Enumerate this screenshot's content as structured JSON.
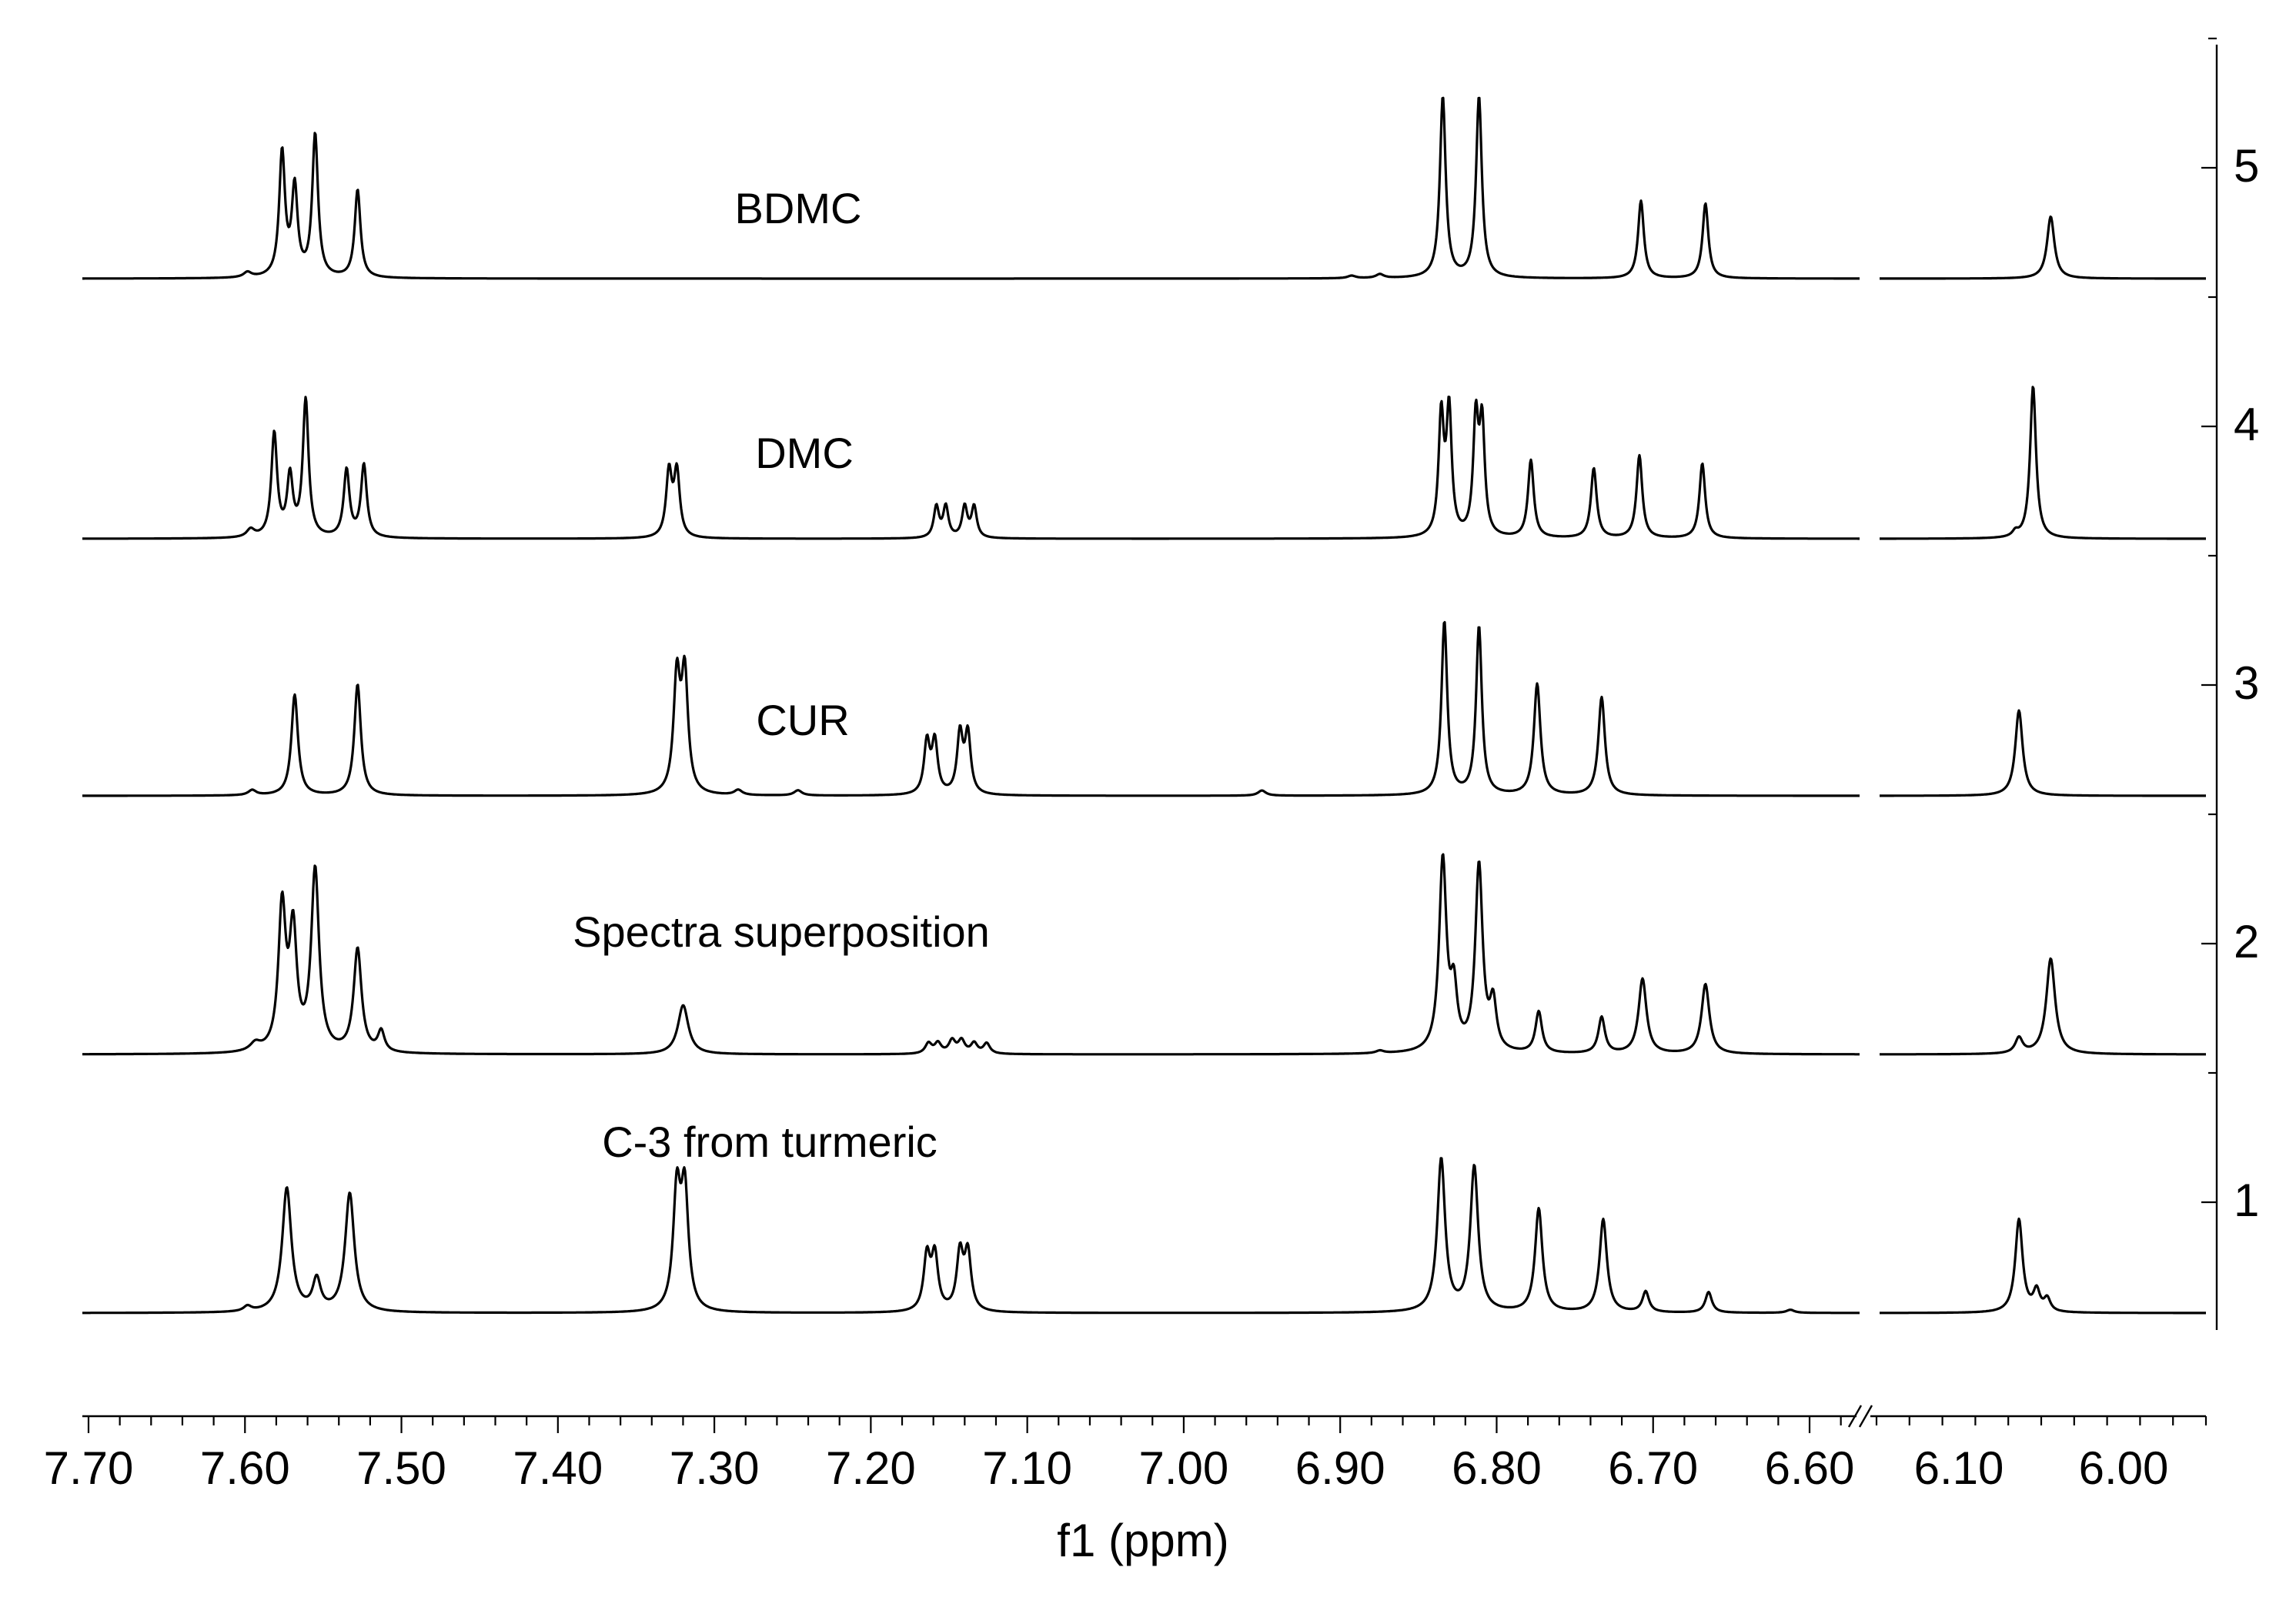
{
  "chart_data": {
    "type": "line",
    "xlabel": "f1 (ppm)",
    "x_axis": {
      "reversed": true,
      "broken": true,
      "segments": [
        {
          "from": 7.7,
          "to": 6.57,
          "major_ticks": [
            7.7,
            7.6,
            7.5,
            7.4,
            7.3,
            7.2,
            7.1,
            7.0,
            6.9,
            6.8,
            6.7,
            6.6
          ]
        },
        {
          "from": 6.15,
          "to": 5.95,
          "major_ticks": [
            6.1,
            6.0
          ]
        }
      ],
      "tick_labels": [
        "7.70",
        "7.60",
        "7.50",
        "7.40",
        "7.30",
        "7.20",
        "7.10",
        "7.00",
        "6.90",
        "6.80",
        "6.70",
        "6.60",
        "6.10",
        "6.00"
      ]
    },
    "y_axis": {
      "position": "right",
      "ticks": [
        1,
        2,
        3,
        4,
        5
      ],
      "tick_labels": [
        "1",
        "2",
        "3",
        "4",
        "5"
      ]
    },
    "grid": false,
    "legend": "none",
    "series": [
      {
        "name": "C-3 from turmeric",
        "offset": 1,
        "peaks": [
          {
            "ppm": 7.595,
            "h": 0.02,
            "w": 0.003
          },
          {
            "ppm": 7.57,
            "h": 0.48,
            "w": 0.0035
          },
          {
            "ppm": 7.551,
            "h": 0.12,
            "w": 0.003
          },
          {
            "ppm": 7.53,
            "h": 0.46,
            "w": 0.0035
          },
          {
            "ppm": 7.322,
            "h": 0.45,
            "w": 0.0028
          },
          {
            "ppm": 7.317,
            "h": 0.45,
            "w": 0.0028
          },
          {
            "ppm": 7.163,
            "h": 0.21,
            "w": 0.0025
          },
          {
            "ppm": 7.158,
            "h": 0.21,
            "w": 0.0025
          },
          {
            "ppm": 7.142,
            "h": 0.22,
            "w": 0.0025
          },
          {
            "ppm": 7.137,
            "h": 0.22,
            "w": 0.0025
          },
          {
            "ppm": 6.836,
            "h": 0.59,
            "w": 0.003
          },
          {
            "ppm": 6.815,
            "h": 0.56,
            "w": 0.003
          },
          {
            "ppm": 6.774,
            "h": 0.4,
            "w": 0.0028
          },
          {
            "ppm": 6.733,
            "h": 0.36,
            "w": 0.0028
          },
          {
            "ppm": 6.706,
            "h": 0.08,
            "w": 0.0025
          },
          {
            "ppm": 6.666,
            "h": 0.08,
            "w": 0.0025
          },
          {
            "ppm": 6.614,
            "h": 0.012,
            "w": 0.003
          },
          {
            "ppm": 6.056,
            "h": 0.36,
            "w": 0.0025
          },
          {
            "ppm": 6.046,
            "h": 0.08,
            "w": 0.0022
          },
          {
            "ppm": 6.04,
            "h": 0.05,
            "w": 0.0022
          }
        ]
      },
      {
        "name": "Spectra superposition",
        "offset": 2,
        "peaks": [
          {
            "ppm": 7.59,
            "h": 0.03,
            "w": 0.004
          },
          {
            "ppm": 7.573,
            "h": 0.55,
            "w": 0.0028
          },
          {
            "ppm": 7.566,
            "h": 0.45,
            "w": 0.0028
          },
          {
            "ppm": 7.552,
            "h": 0.7,
            "w": 0.003
          },
          {
            "ppm": 7.525,
            "h": 0.4,
            "w": 0.003
          },
          {
            "ppm": 7.51,
            "h": 0.08,
            "w": 0.0025
          },
          {
            "ppm": 7.318,
            "h": 0.19,
            "w": 0.004
          },
          {
            "ppm": 7.162,
            "h": 0.04,
            "w": 0.0025
          },
          {
            "ppm": 7.156,
            "h": 0.04,
            "w": 0.0025
          },
          {
            "ppm": 7.147,
            "h": 0.05,
            "w": 0.0025
          },
          {
            "ppm": 7.141,
            "h": 0.05,
            "w": 0.0025
          },
          {
            "ppm": 7.133,
            "h": 0.04,
            "w": 0.0025
          },
          {
            "ppm": 7.125,
            "h": 0.04,
            "w": 0.0025
          },
          {
            "ppm": 6.875,
            "h": 0.01,
            "w": 0.003
          },
          {
            "ppm": 6.835,
            "h": 0.74,
            "w": 0.0028
          },
          {
            "ppm": 6.828,
            "h": 0.22,
            "w": 0.0025
          },
          {
            "ppm": 6.812,
            "h": 0.72,
            "w": 0.0028
          },
          {
            "ppm": 6.803,
            "h": 0.18,
            "w": 0.0025
          },
          {
            "ppm": 6.774,
            "h": 0.16,
            "w": 0.0025
          },
          {
            "ppm": 6.734,
            "h": 0.14,
            "w": 0.0025
          },
          {
            "ppm": 6.708,
            "h": 0.29,
            "w": 0.003
          },
          {
            "ppm": 6.668,
            "h": 0.27,
            "w": 0.003
          },
          {
            "ppm": 6.056,
            "h": 0.06,
            "w": 0.0025
          },
          {
            "ppm": 6.038,
            "h": 0.37,
            "w": 0.003
          }
        ]
      },
      {
        "name": "CUR",
        "offset": 3,
        "peaks": [
          {
            "ppm": 7.592,
            "h": 0.02,
            "w": 0.003
          },
          {
            "ppm": 7.565,
            "h": 0.39,
            "w": 0.0025
          },
          {
            "ppm": 7.525,
            "h": 0.43,
            "w": 0.0025
          },
          {
            "ppm": 7.322,
            "h": 0.44,
            "w": 0.0025
          },
          {
            "ppm": 7.317,
            "h": 0.45,
            "w": 0.0025
          },
          {
            "ppm": 7.283,
            "h": 0.02,
            "w": 0.003
          },
          {
            "ppm": 7.245,
            "h": 0.02,
            "w": 0.003
          },
          {
            "ppm": 7.163,
            "h": 0.2,
            "w": 0.0022
          },
          {
            "ppm": 7.158,
            "h": 0.2,
            "w": 0.0022
          },
          {
            "ppm": 7.142,
            "h": 0.23,
            "w": 0.0022
          },
          {
            "ppm": 7.137,
            "h": 0.23,
            "w": 0.0022
          },
          {
            "ppm": 6.95,
            "h": 0.02,
            "w": 0.003
          },
          {
            "ppm": 6.834,
            "h": 0.67,
            "w": 0.0022
          },
          {
            "ppm": 6.812,
            "h": 0.65,
            "w": 0.0022
          },
          {
            "ppm": 6.775,
            "h": 0.43,
            "w": 0.0025
          },
          {
            "ppm": 6.734,
            "h": 0.38,
            "w": 0.0025
          },
          {
            "ppm": 6.056,
            "h": 0.33,
            "w": 0.0025
          }
        ]
      },
      {
        "name": "DMC",
        "offset": 4,
        "peaks": [
          {
            "ppm": 7.593,
            "h": 0.03,
            "w": 0.003
          },
          {
            "ppm": 7.578,
            "h": 0.4,
            "w": 0.0022
          },
          {
            "ppm": 7.568,
            "h": 0.23,
            "w": 0.0022
          },
          {
            "ppm": 7.558,
            "h": 0.53,
            "w": 0.0022
          },
          {
            "ppm": 7.532,
            "h": 0.26,
            "w": 0.0022
          },
          {
            "ppm": 7.521,
            "h": 0.28,
            "w": 0.0022
          },
          {
            "ppm": 7.327,
            "h": 0.25,
            "w": 0.0022
          },
          {
            "ppm": 7.322,
            "h": 0.25,
            "w": 0.0022
          },
          {
            "ppm": 7.157,
            "h": 0.12,
            "w": 0.002
          },
          {
            "ppm": 7.151,
            "h": 0.12,
            "w": 0.002
          },
          {
            "ppm": 7.139,
            "h": 0.12,
            "w": 0.002
          },
          {
            "ppm": 7.133,
            "h": 0.12,
            "w": 0.002
          },
          {
            "ppm": 6.836,
            "h": 0.46,
            "w": 0.002
          },
          {
            "ppm": 6.831,
            "h": 0.48,
            "w": 0.002
          },
          {
            "ppm": 6.814,
            "h": 0.44,
            "w": 0.002
          },
          {
            "ppm": 6.81,
            "h": 0.42,
            "w": 0.002
          },
          {
            "ppm": 6.779,
            "h": 0.3,
            "w": 0.0022
          },
          {
            "ppm": 6.739,
            "h": 0.27,
            "w": 0.0022
          },
          {
            "ppm": 6.71,
            "h": 0.32,
            "w": 0.0022
          },
          {
            "ppm": 6.67,
            "h": 0.29,
            "w": 0.0022
          },
          {
            "ppm": 6.058,
            "h": 0.02,
            "w": 0.002
          },
          {
            "ppm": 6.048,
            "h": 0.59,
            "w": 0.002
          }
        ]
      },
      {
        "name": "BDMC",
        "offset": 5,
        "peaks": [
          {
            "ppm": 7.595,
            "h": 0.02,
            "w": 0.003
          },
          {
            "ppm": 7.573,
            "h": 0.48,
            "w": 0.0022
          },
          {
            "ppm": 7.565,
            "h": 0.34,
            "w": 0.0022
          },
          {
            "ppm": 7.552,
            "h": 0.55,
            "w": 0.0022
          },
          {
            "ppm": 7.525,
            "h": 0.34,
            "w": 0.0022
          },
          {
            "ppm": 6.893,
            "h": 0.01,
            "w": 0.003
          },
          {
            "ppm": 6.875,
            "h": 0.015,
            "w": 0.003
          },
          {
            "ppm": 6.835,
            "h": 0.7,
            "w": 0.0022
          },
          {
            "ppm": 6.812,
            "h": 0.7,
            "w": 0.0022
          },
          {
            "ppm": 6.709,
            "h": 0.3,
            "w": 0.0022
          },
          {
            "ppm": 6.668,
            "h": 0.29,
            "w": 0.0022
          },
          {
            "ppm": 6.038,
            "h": 0.24,
            "w": 0.0025
          }
        ]
      }
    ],
    "annotations": [
      "BDMC",
      "DMC",
      "CUR",
      "Spectra superposition",
      "C-3 from turmeric"
    ]
  }
}
